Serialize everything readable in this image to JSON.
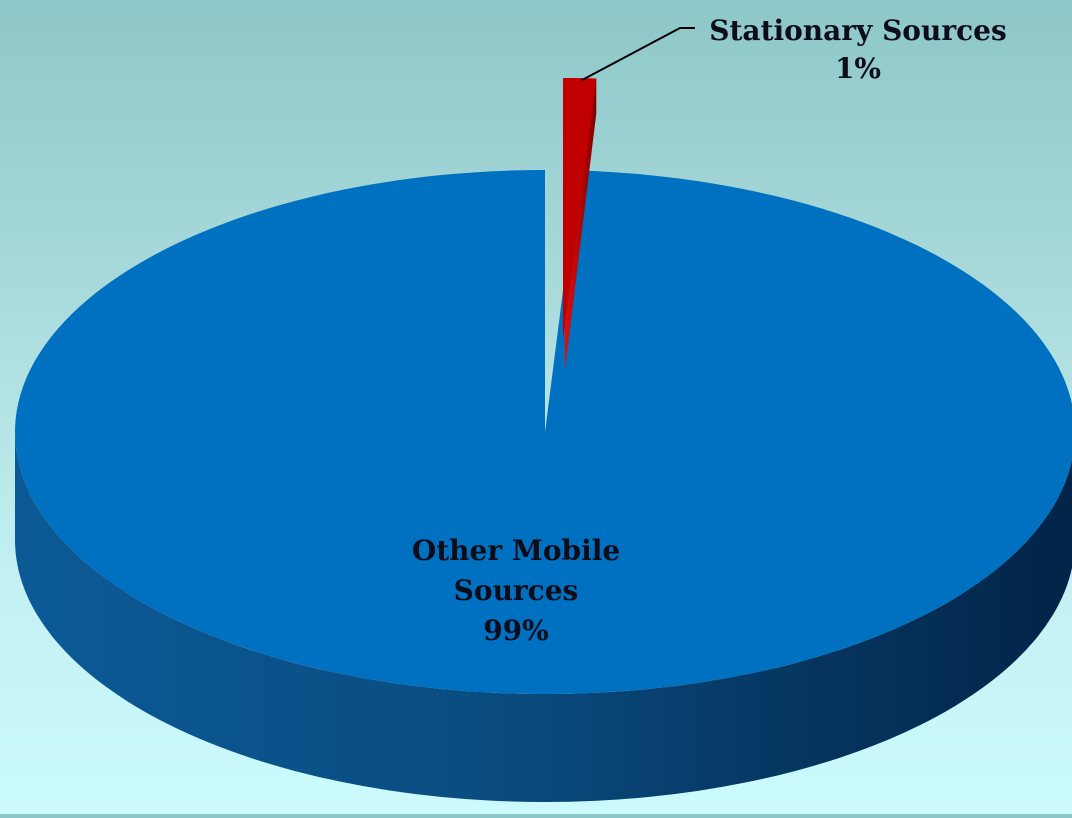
{
  "chart_data": {
    "type": "pie",
    "style": "3d-exploded",
    "slices": [
      {
        "label_lines": [
          "Stationary Sources",
          "1%"
        ],
        "value": 1,
        "color": "#c00000",
        "exploded": true,
        "leader_line": true
      },
      {
        "label_lines": [
          "Other Mobile",
          "Sources",
          "99%"
        ],
        "value": 99,
        "color": "#0070c0",
        "exploded": false,
        "leader_line": false
      }
    ],
    "legend": "none"
  }
}
